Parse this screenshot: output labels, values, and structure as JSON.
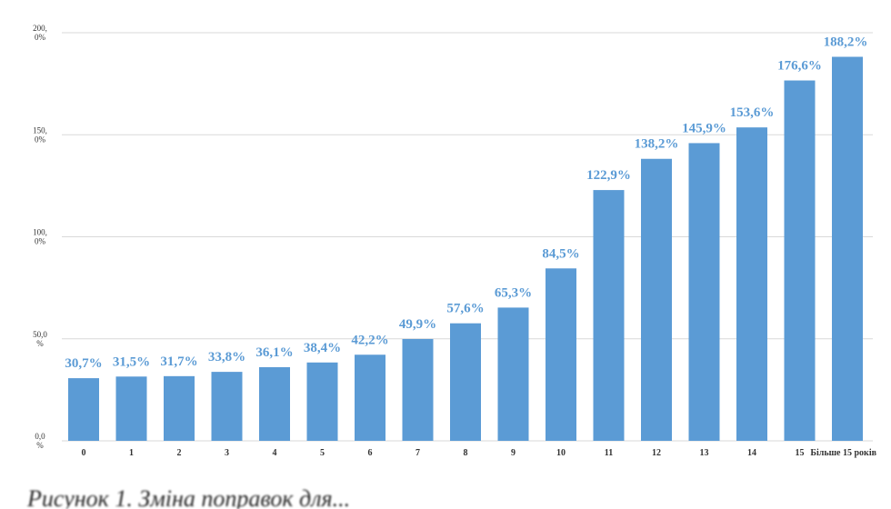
{
  "chart_data": {
    "type": "bar",
    "categories": [
      "0",
      "1",
      "2",
      "3",
      "4",
      "5",
      "6",
      "7",
      "8",
      "9",
      "10",
      "11",
      "12",
      "13",
      "14",
      "15",
      "Більше 15 років"
    ],
    "values": [
      30.7,
      31.5,
      31.7,
      33.8,
      36.1,
      38.4,
      42.2,
      49.9,
      57.6,
      65.3,
      84.5,
      122.9,
      138.2,
      145.9,
      153.6,
      176.6,
      188.2
    ],
    "value_labels": [
      "30,7%",
      "31,5%",
      "31,7%",
      "33,8%",
      "36,1%",
      "38,4%",
      "42,2%",
      "49,9%",
      "57,6%",
      "65,3%",
      "84,5%",
      "122,9%",
      "138,2%",
      "145,9%",
      "153,6%",
      "176,6%",
      "188,2%"
    ],
    "y_ticks": [
      0,
      50,
      100,
      150,
      200
    ],
    "y_tick_labels": [
      [
        "0,0",
        "%"
      ],
      [
        "50,0",
        "%"
      ],
      [
        "100,",
        "0%"
      ],
      [
        "150,",
        "0%"
      ],
      [
        "200,",
        "0%"
      ]
    ],
    "ylim": [
      0,
      200
    ],
    "grid": true,
    "legend": "none",
    "bar_color": "#5b9bd5",
    "label_color": "#5b9bd5",
    "grid_color": "#d9d9d9",
    "title": "",
    "xlabel": "",
    "ylabel": ""
  },
  "caption": "Рисунок 1. Зміна поправок для..."
}
